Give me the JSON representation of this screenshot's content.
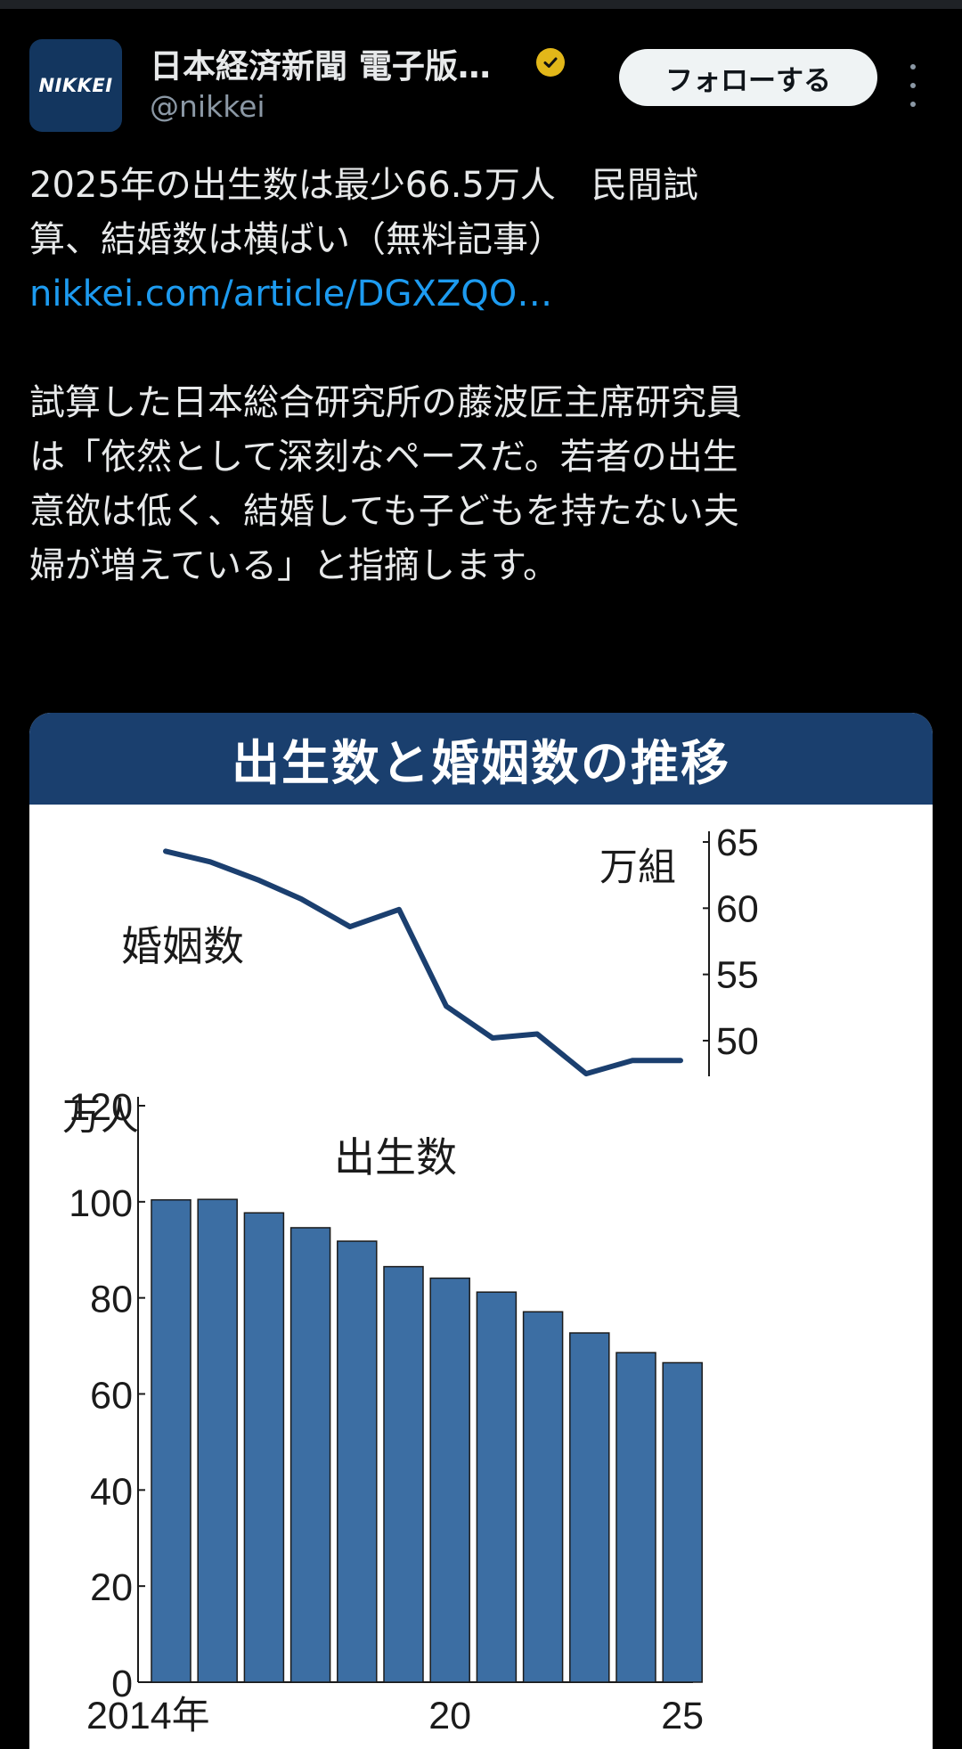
{
  "account": {
    "name": "日本経済新聞 電子版…",
    "handle": "@nikkei",
    "avatar_text": "NIKKEI",
    "follow_label": "フォローする",
    "verified_color": "#e2b719"
  },
  "post": {
    "line1": "2025年の出生数は最少66.5万人　民間試",
    "line2": "算、結婚数は横ばい（無料記事）",
    "link": "nikkei.com/article/DGXZQO…",
    "para2": [
      "試算した日本総合研究所の藤波匠主席研究員",
      "は「依然として深刻なペースだ。若者の出生",
      "意欲は低く、結婚しても子どもを持たない夫",
      "婦が増えている」と指摘します。"
    ]
  },
  "card": {
    "title": "出生数と婚姻数の推移"
  },
  "chart_data": [
    {
      "type": "line",
      "series_label": "婚姻数",
      "unit": "万組",
      "x": [
        2014,
        2015,
        2016,
        2017,
        2018,
        2019,
        2020,
        2021,
        2022,
        2023,
        2024,
        2025
      ],
      "values": [
        64.3,
        63.5,
        62.1,
        60.7,
        58.6,
        59.9,
        52.6,
        50.2,
        50.5,
        47.5,
        48.5,
        48.5
      ],
      "yticks": [
        50,
        55,
        60,
        65
      ],
      "ytick_labels": [
        "50",
        "55",
        "60",
        "65"
      ],
      "ylim": [
        46.5,
        65
      ],
      "color": "#1b3f6f"
    },
    {
      "type": "bar",
      "series_label": "出生数",
      "unit": "万人",
      "categories": [
        "2014",
        "2015",
        "2016",
        "2017",
        "2018",
        "2019",
        "2020",
        "2021",
        "2022",
        "2023",
        "2024",
        "2025"
      ],
      "values": [
        100.4,
        100.5,
        97.7,
        94.6,
        91.8,
        86.5,
        84.1,
        81.2,
        77.1,
        72.7,
        68.6,
        66.5
      ],
      "yticks": [
        0,
        20,
        40,
        60,
        80,
        100,
        120
      ],
      "ytick_labels": [
        "0",
        "20",
        "40",
        "60",
        "80",
        "100",
        "120"
      ],
      "ylim": [
        0,
        120
      ],
      "xtick_labels": [
        "2014年",
        "20",
        "25"
      ],
      "color": "#3c6ea3"
    }
  ]
}
